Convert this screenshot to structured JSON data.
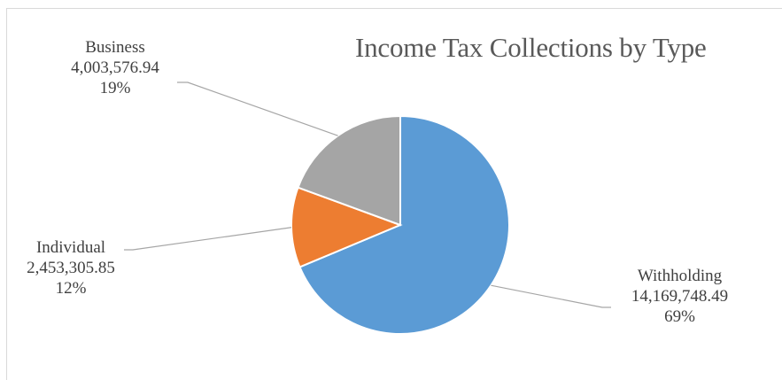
{
  "chart_data": {
    "type": "pie",
    "title": "Income Tax Collections by Type",
    "slices": [
      {
        "name": "Withholding",
        "value": 14169748.49,
        "value_label": "14,169,748.49",
        "percent_label": "69%",
        "color": "#5b9bd5"
      },
      {
        "name": "Individual",
        "value": 2453305.85,
        "value_label": "2,453,305.85",
        "percent_label": "12%",
        "color": "#ed7d31"
      },
      {
        "name": "Business",
        "value": 4003576.94,
        "value_label": "4,003,576.94",
        "percent_label": "19%",
        "color": "#a5a5a5"
      }
    ],
    "leader_line_color": "#a6a6a6",
    "legend": "none"
  }
}
